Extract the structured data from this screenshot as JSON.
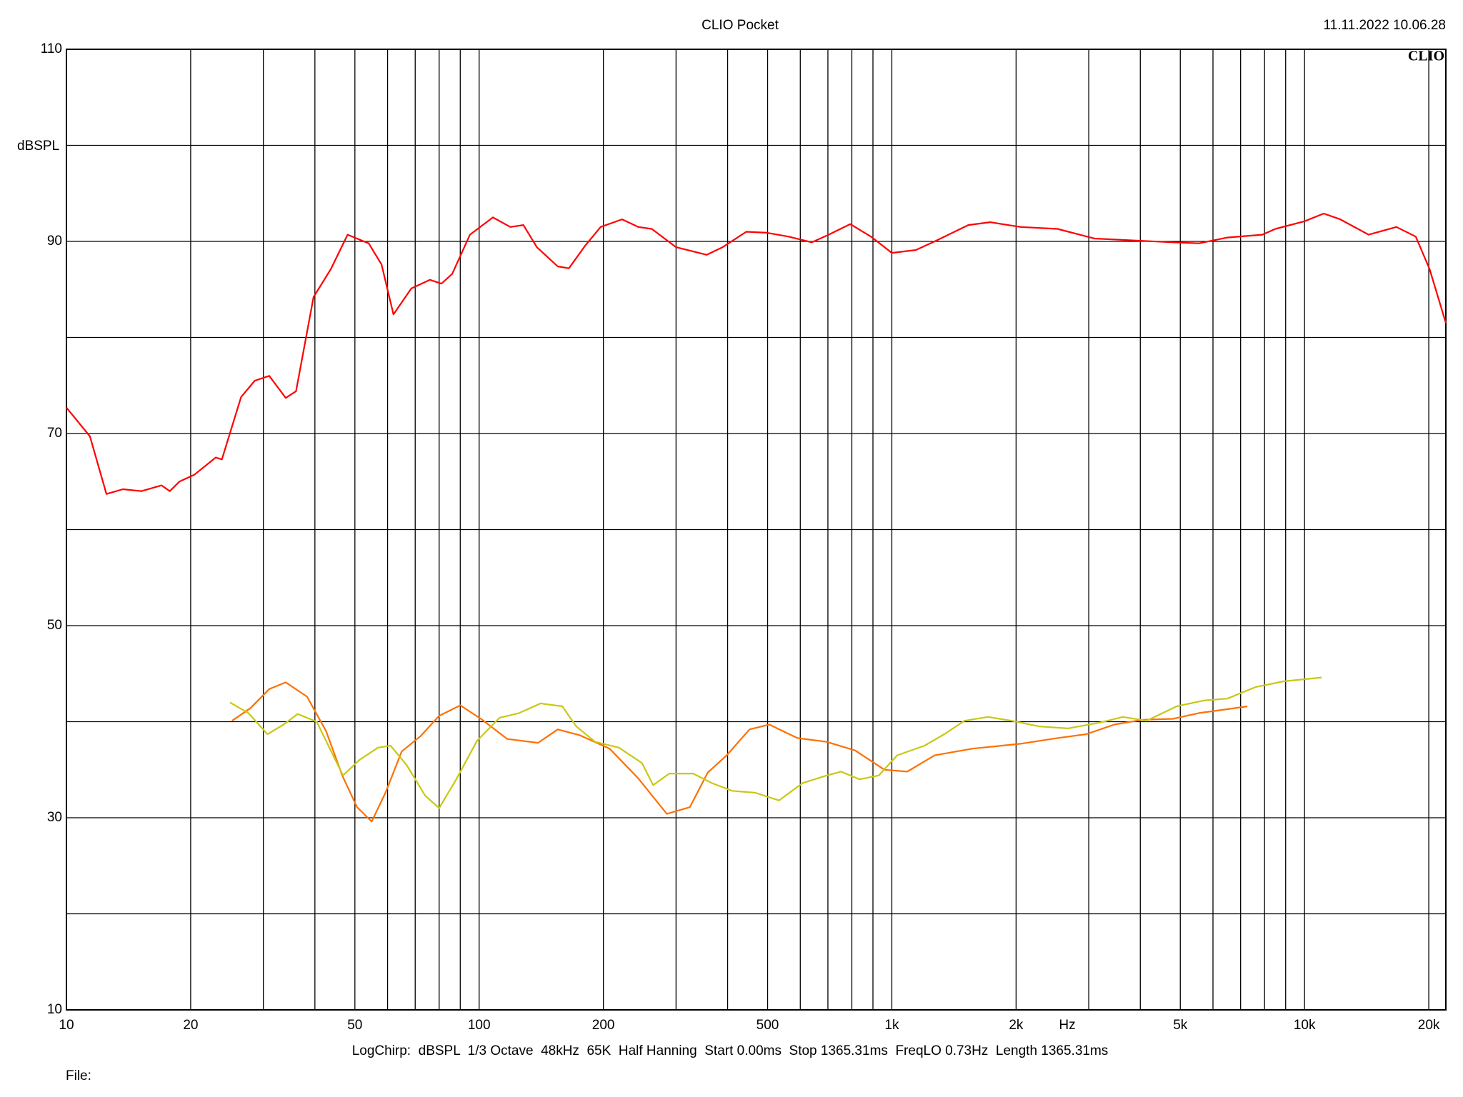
{
  "chart_data": {
    "type": "line",
    "title": "CLIO Pocket",
    "timestamp": "11.11.2022 10.06.28",
    "logo": "CLIO",
    "y_label": "dBSPL",
    "x_label": "Hz",
    "footer": "LogChirp:  dBSPL  1/3 Octave  48kHz  65K  Half Hanning  Start 0.00ms  Stop 1365.31ms  FreqLO 0.73Hz  Length 1365.31ms",
    "file_label": "File:",
    "x_log": true,
    "grid": true,
    "xlim": [
      10,
      22000
    ],
    "ylim": [
      10,
      110
    ],
    "xticks": [
      10,
      20,
      50,
      100,
      200,
      500,
      {
        "value": 1000,
        "label": "1k"
      },
      {
        "value": 2000,
        "label": "2k"
      },
      {
        "value": 5000,
        "label": "5k"
      },
      {
        "value": 10000,
        "label": "10k"
      },
      {
        "value": 20000,
        "label": "20k"
      }
    ],
    "minor_xticks": [
      30,
      40,
      60,
      70,
      80,
      90,
      300,
      400,
      600,
      700,
      800,
      900,
      3000,
      4000,
      6000,
      7000,
      8000,
      9000
    ],
    "yticks": [
      10,
      30,
      50,
      70,
      90,
      110
    ],
    "minor_yticks": [
      20,
      40,
      60,
      80,
      100
    ],
    "series": [
      {
        "color": "#ff0000",
        "x": [
          10,
          11.4,
          12.5,
          13.7,
          15.2,
          17,
          17.8,
          18.8,
          20.4,
          23,
          23.8,
          26.5,
          28.6,
          31,
          34,
          36,
          39.7,
          43.7,
          48,
          54,
          58,
          62,
          68.5,
          76,
          81,
          86,
          95,
          108,
          119,
          128,
          138,
          155,
          165,
          181,
          197,
          222,
          243,
          262,
          300,
          356,
          389,
          444,
          498,
          562,
          640,
          703,
          793,
          890,
          1000,
          1143,
          1270,
          1532,
          1730,
          2050,
          2520,
          3100,
          3870,
          4800,
          5550,
          6500,
          7900,
          8500,
          10000,
          11130,
          12200,
          14300,
          16700,
          18600,
          20100,
          22000
        ],
        "values": [
          72.7,
          69.7,
          63.7,
          64.2,
          64,
          64.6,
          64,
          65,
          65.7,
          67.5,
          67.3,
          73.8,
          75.5,
          76,
          73.7,
          74.4,
          84.2,
          87.1,
          90.7,
          89.8,
          87.6,
          82.4,
          85.1,
          86,
          85.6,
          86.6,
          90.7,
          92.5,
          91.5,
          91.7,
          89.4,
          87.4,
          87.2,
          89.6,
          91.5,
          92.3,
          91.5,
          91.3,
          89.4,
          88.6,
          89.4,
          91,
          90.9,
          90.5,
          89.9,
          90.7,
          91.8,
          90.5,
          88.8,
          89.1,
          90,
          91.7,
          92,
          91.5,
          91.3,
          90.3,
          90.1,
          89.9,
          89.8,
          90.4,
          90.7,
          91.3,
          92.1,
          92.9,
          92.3,
          90.7,
          91.5,
          90.5,
          87.1,
          81.5
        ]
      },
      {
        "color": "#ff7000",
        "x": [
          25.2,
          27.9,
          31,
          34,
          38.3,
          42.6,
          46.6,
          50.6,
          54.9,
          59.3,
          64.9,
          72.1,
          80,
          90,
          101,
          117,
          139,
          155,
          175,
          207,
          243,
          285,
          324,
          358,
          398,
          452,
          505,
          590,
          695,
          815,
          960,
          1090,
          1270,
          1570,
          2050,
          2520,
          2960,
          3460,
          4050,
          4800,
          5550,
          6500,
          7270
        ],
        "values": [
          40.1,
          41.4,
          43.4,
          44.1,
          42.6,
          39,
          34.4,
          31.1,
          29.6,
          32.6,
          36.9,
          38.5,
          40.6,
          41.7,
          40.3,
          38.2,
          37.8,
          39.2,
          38.6,
          37.2,
          34.1,
          30.4,
          31.1,
          34.7,
          36.5,
          39.2,
          39.7,
          38.3,
          37.9,
          37,
          35,
          34.8,
          36.5,
          37.2,
          37.7,
          38.3,
          38.7,
          39.7,
          40.2,
          40.3,
          40.9,
          41.3,
          41.6
        ]
      },
      {
        "color": "#c8c814",
        "x": [
          24.9,
          27.6,
          30.7,
          33.6,
          36.3,
          40.4,
          43.7,
          46.8,
          51.2,
          56.9,
          61,
          66.7,
          74,
          80,
          88,
          98.8,
          112,
          125,
          141,
          159,
          172,
          191,
          218,
          248,
          264,
          289,
          330,
          367,
          410,
          467,
          533,
          607,
          695,
          753,
          835,
          930,
          1030,
          1200,
          1340,
          1500,
          1710,
          1950,
          2280,
          2670,
          3190,
          3630,
          4140,
          4900,
          5690,
          6500,
          7600,
          8900,
          11000
        ],
        "values": [
          42,
          40.9,
          38.7,
          39.7,
          40.8,
          40,
          37,
          34.4,
          36,
          37.3,
          37.5,
          35.5,
          32.3,
          31,
          34,
          38,
          40.4,
          40.9,
          41.9,
          41.6,
          39.5,
          37.9,
          37.3,
          35.7,
          33.4,
          34.6,
          34.6,
          33.6,
          32.8,
          32.6,
          31.8,
          33.6,
          34.4,
          34.8,
          34,
          34.4,
          36.5,
          37.5,
          38.7,
          40.1,
          40.5,
          40.1,
          39.5,
          39.3,
          39.9,
          40.5,
          40.1,
          41.6,
          42.2,
          42.4,
          43.6,
          44.2,
          44.6
        ]
      }
    ]
  }
}
